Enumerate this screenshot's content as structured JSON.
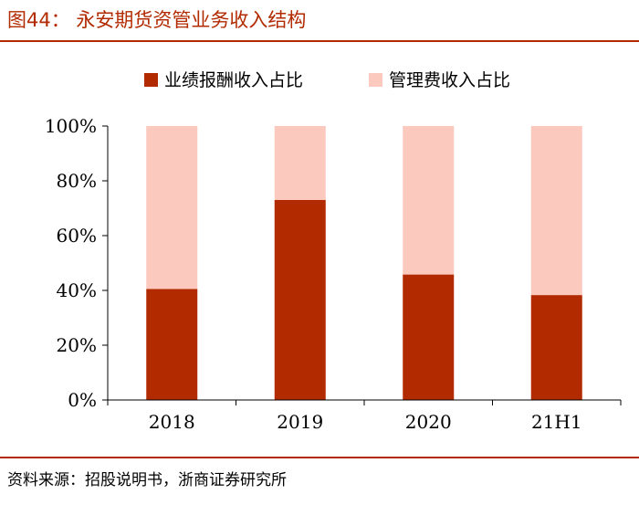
{
  "figure": {
    "title": "图44： 永安期货资管业务收入结构",
    "source": "资料来源：招股说明书，浙商证券研究所",
    "colors": {
      "accent": "#b22a00",
      "series1": "#b22a00",
      "series2": "#fcc9be",
      "axis": "#000000"
    }
  },
  "chart_data": {
    "type": "bar",
    "stacked": true,
    "title": "",
    "xlabel": "",
    "ylabel": "",
    "categories": [
      "2018",
      "2019",
      "2020",
      "21H1"
    ],
    "ylim": [
      0,
      100
    ],
    "yticks": [
      0,
      20,
      40,
      60,
      80,
      100
    ],
    "ytick_labels": [
      "0%",
      "20%",
      "40%",
      "60%",
      "80%",
      "100%"
    ],
    "legend_position": "top-center",
    "grid": false,
    "series": [
      {
        "name": "业绩报酬收入占比",
        "values": [
          40.5,
          73,
          45.8,
          38.3
        ]
      },
      {
        "name": "管理费收入占比",
        "values": [
          59.5,
          27,
          54.2,
          61.7
        ]
      }
    ]
  }
}
